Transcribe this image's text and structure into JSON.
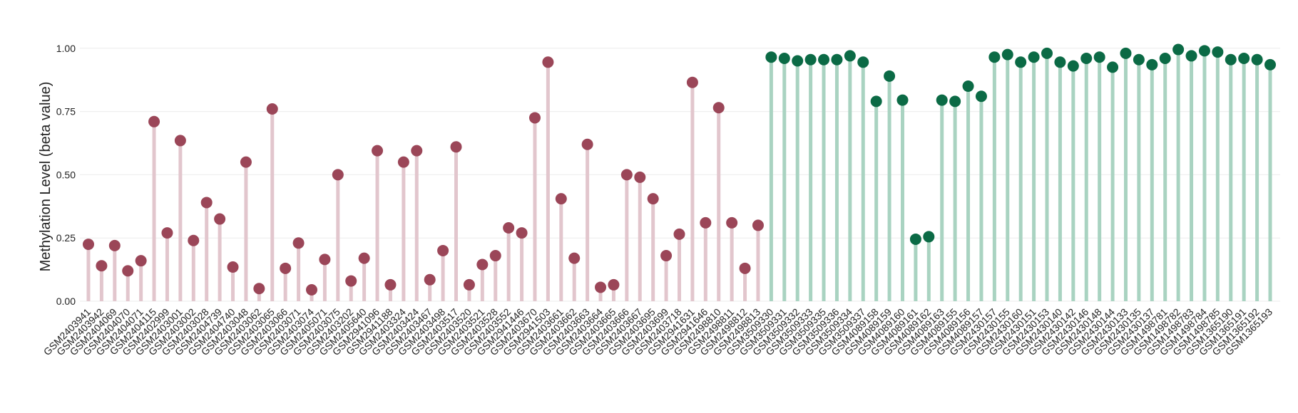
{
  "chart_data": {
    "type": "lollipop",
    "y_label": "Methylation Level (beta value)",
    "ylim": [
      0,
      1.05
    ],
    "yticks": [
      {
        "value": 0,
        "label": "0.00"
      },
      {
        "value": 0.25,
        "label": "0.25"
      },
      {
        "value": 0.5,
        "label": "0.50"
      },
      {
        "value": 0.75,
        "label": "0.75"
      },
      {
        "value": 1,
        "label": "1.00"
      }
    ],
    "grid": true,
    "categories": [
      "GSM2403941",
      "GSM2403942",
      "GSM2404069",
      "GSM2404070",
      "GSM2404071",
      "GSM2404115",
      "GSM2402999",
      "GSM2403001",
      "GSM2403002",
      "GSM2403028",
      "GSM2404739",
      "GSM2404740",
      "GSM2403048",
      "GSM2403062",
      "GSM2403065",
      "GSM2403066",
      "GSM2403071",
      "GSM2403074",
      "GSM2405071",
      "GSM2403075",
      "GSM2403202",
      "GSM2405640",
      "GSM2941096",
      "GSM2941188",
      "GSM2403324",
      "GSM2403424",
      "GSM2403467",
      "GSM2403498",
      "GSM2403517",
      "GSM2403520",
      "GSM2403521",
      "GSM2403528",
      "GSM2403552",
      "GSM2941446",
      "GSM2403670",
      "GSM2941503",
      "GSM2403661",
      "GSM2403662",
      "GSM2403663",
      "GSM2403664",
      "GSM2403665",
      "GSM2403666",
      "GSM2403667",
      "GSM2403695",
      "GSM2403699",
      "GSM2403718",
      "GSM2941631",
      "GSM2941646",
      "GSM2498810",
      "GSM2498811",
      "GSM2498812",
      "GSM2498813",
      "GSM3509330",
      "GSM3509331",
      "GSM3509332",
      "GSM3509333",
      "GSM3509335",
      "GSM3509336",
      "GSM3509334",
      "GSM3509337",
      "GSM4089158",
      "GSM4089159",
      "GSM4089160",
      "GSM4089161",
      "GSM4089162",
      "GSM4089163",
      "GSM4089155",
      "GSM4089156",
      "GSM4089157",
      "GSM2430157",
      "GSM2430155",
      "GSM2430160",
      "GSM2430151",
      "GSM2430153",
      "GSM2430140",
      "GSM2430142",
      "GSM2430146",
      "GSM2430148",
      "GSM2430144",
      "GSM2430133",
      "GSM2430135",
      "GSM2430137",
      "GSM1498781",
      "GSM1498782",
      "GSM1498783",
      "GSM1498784",
      "GSM1498785",
      "GSM1365190",
      "GSM1365191",
      "GSM1365192",
      "GSM1365193"
    ],
    "series": [
      {
        "color": "#9b4658",
        "stem_color": "#e2c6cd",
        "values": [
          0.225,
          0.14,
          0.22,
          0.12,
          0.16,
          0.71,
          0.27,
          0.635,
          0.24,
          0.39,
          0.325,
          0.135,
          0.55,
          0.05,
          0.76,
          0.13,
          0.23,
          0.045,
          0.165,
          0.5,
          0.08,
          0.17,
          0.595,
          0.065,
          0.55,
          0.595,
          0.085,
          0.2,
          0.61,
          0.065,
          0.145,
          0.18,
          0.29,
          0.27,
          0.725,
          0.945,
          0.405,
          0.17,
          0.62,
          0.055,
          0.065,
          0.5,
          0.49,
          0.405,
          0.18,
          0.265,
          0.865,
          0.31,
          0.765,
          0.31,
          0.13,
          0.3,
          null,
          null,
          null,
          null,
          null,
          null,
          null,
          null,
          null,
          null,
          null,
          null,
          null,
          null,
          null,
          null,
          null,
          null,
          null,
          null,
          null,
          null,
          null,
          null,
          null,
          null,
          null,
          null,
          null,
          null,
          null,
          null,
          null,
          null,
          null,
          null,
          null,
          null,
          null
        ]
      },
      {
        "color": "#0b6a45",
        "stem_color": "#a9d3c1",
        "values": [
          null,
          null,
          null,
          null,
          null,
          null,
          null,
          null,
          null,
          null,
          null,
          null,
          null,
          null,
          null,
          null,
          null,
          null,
          null,
          null,
          null,
          null,
          null,
          null,
          null,
          null,
          null,
          null,
          null,
          null,
          null,
          null,
          null,
          null,
          null,
          null,
          null,
          null,
          null,
          null,
          null,
          null,
          null,
          null,
          null,
          null,
          null,
          null,
          null,
          null,
          null,
          null,
          0.965,
          0.96,
          0.95,
          0.955,
          0.955,
          0.955,
          0.97,
          0.945,
          0.79,
          0.89,
          0.795,
          0.245,
          0.255,
          0.795,
          0.79,
          0.85,
          0.81,
          0.965,
          0.975,
          0.945,
          0.965,
          0.98,
          0.945,
          0.93,
          0.96,
          0.965,
          0.925,
          0.98,
          0.955,
          0.935,
          0.96,
          0.995,
          0.97,
          0.99,
          0.985,
          0.955,
          0.96,
          0.955,
          0.935
        ]
      }
    ]
  }
}
